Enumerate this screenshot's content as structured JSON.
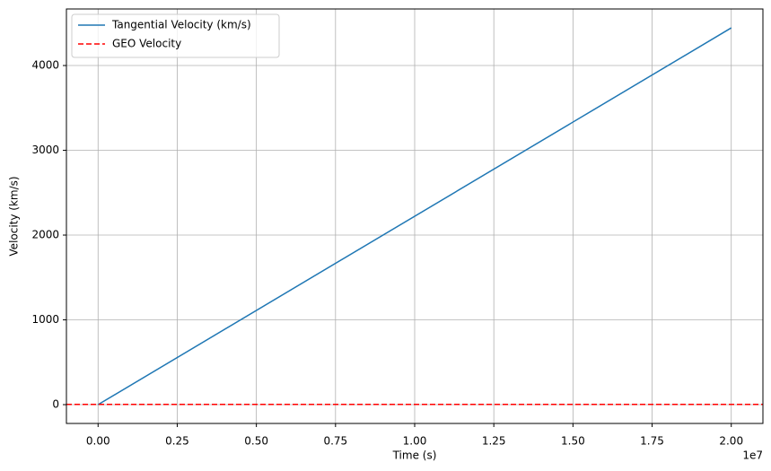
{
  "chart_data": {
    "type": "line",
    "xlabel": "Time (s)",
    "ylabel": "Velocity (km/s)",
    "x_offset_label": "1e7",
    "series": [
      {
        "name": "Tangential Velocity (km/s)",
        "color": "#1f77b4",
        "dash": "solid",
        "x": [
          0,
          20000000
        ],
        "values": [
          0,
          4444
        ]
      },
      {
        "name": "GEO Velocity",
        "color": "#ff0000",
        "dash": "dashed",
        "x": [
          -1000000,
          21000000
        ],
        "values": [
          3.07,
          3.07
        ]
      }
    ],
    "xlim": [
      -1000000,
      21000000
    ],
    "xticks": [
      {
        "value": 0,
        "label": "0.00"
      },
      {
        "value": 2500000,
        "label": "0.25"
      },
      {
        "value": 5000000,
        "label": "0.50"
      },
      {
        "value": 7500000,
        "label": "0.75"
      },
      {
        "value": 10000000,
        "label": "1.00"
      },
      {
        "value": 12500000,
        "label": "1.25"
      },
      {
        "value": 15000000,
        "label": "1.50"
      },
      {
        "value": 17500000,
        "label": "1.75"
      },
      {
        "value": 20000000,
        "label": "2.00"
      }
    ],
    "ylim": [
      -222,
      4667
    ],
    "yticks": [
      0,
      1000,
      2000,
      3000,
      4000
    ],
    "grid": true,
    "legend": "upper left"
  }
}
